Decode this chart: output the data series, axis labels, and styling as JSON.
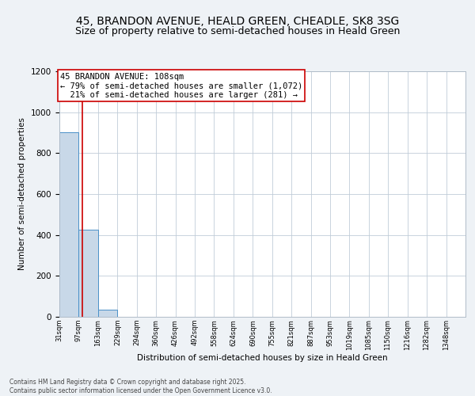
{
  "title_line1": "45, BRANDON AVENUE, HEALD GREEN, CHEADLE, SK8 3SG",
  "title_line2": "Size of property relative to semi-detached houses in Heald Green",
  "xlabel": "Distribution of semi-detached houses by size in Heald Green",
  "ylabel": "Number of semi-detached properties",
  "bins": [
    "31sqm",
    "97sqm",
    "163sqm",
    "229sqm",
    "294sqm",
    "360sqm",
    "426sqm",
    "492sqm",
    "558sqm",
    "624sqm",
    "690sqm",
    "755sqm",
    "821sqm",
    "887sqm",
    "953sqm",
    "1019sqm",
    "1085sqm",
    "1150sqm",
    "1216sqm",
    "1282sqm",
    "1348sqm"
  ],
  "bin_left_edges": [
    31,
    97,
    163,
    229,
    294,
    360,
    426,
    492,
    558,
    624,
    690,
    755,
    821,
    887,
    953,
    1019,
    1085,
    1150,
    1216,
    1282,
    1348
  ],
  "bin_width": 66,
  "values": [
    900,
    425,
    35,
    0,
    0,
    0,
    0,
    0,
    0,
    0,
    0,
    0,
    0,
    0,
    0,
    0,
    0,
    0,
    0,
    0
  ],
  "bar_color": "#c8d8e8",
  "bar_edge_color": "#4a90c8",
  "property_size": 108,
  "red_line_color": "#cc0000",
  "annotation_text": "45 BRANDON AVENUE: 108sqm\n← 79% of semi-detached houses are smaller (1,072)\n  21% of semi-detached houses are larger (281) →",
  "annotation_box_color": "#ffffff",
  "annotation_edge_color": "#cc0000",
  "ylim": [
    0,
    1200
  ],
  "yticks": [
    0,
    200,
    400,
    600,
    800,
    1000,
    1200
  ],
  "footer_text": "Contains HM Land Registry data © Crown copyright and database right 2025.\nContains public sector information licensed under the Open Government Licence v3.0.",
  "bg_color": "#eef2f6",
  "plot_bg_color": "#ffffff",
  "title_fontsize": 10,
  "subtitle_fontsize": 9,
  "annotation_fontsize": 7.5
}
